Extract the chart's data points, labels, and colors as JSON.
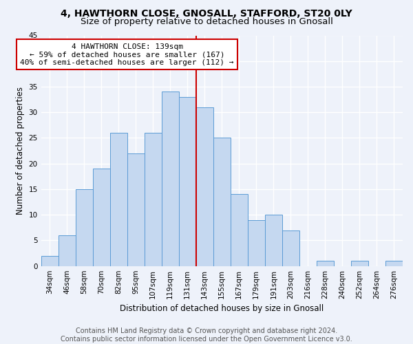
{
  "title_line1": "4, HAWTHORN CLOSE, GNOSALL, STAFFORD, ST20 0LY",
  "title_line2": "Size of property relative to detached houses in Gnosall",
  "xlabel": "Distribution of detached houses by size in Gnosall",
  "ylabel": "Number of detached properties",
  "categories": [
    "34sqm",
    "46sqm",
    "58sqm",
    "70sqm",
    "82sqm",
    "95sqm",
    "107sqm",
    "119sqm",
    "131sqm",
    "143sqm",
    "155sqm",
    "167sqm",
    "179sqm",
    "191sqm",
    "203sqm",
    "216sqm",
    "228sqm",
    "240sqm",
    "252sqm",
    "264sqm",
    "276sqm"
  ],
  "values": [
    2,
    6,
    15,
    19,
    26,
    22,
    26,
    34,
    33,
    31,
    25,
    14,
    9,
    10,
    7,
    0,
    1,
    0,
    1,
    0,
    1
  ],
  "bar_color": "#c5d8f0",
  "bar_edge_color": "#5b9bd5",
  "vline_index": 8.5,
  "vline_color": "#cc0000",
  "annotation_line1": "4 HAWTHORN CLOSE: 139sqm",
  "annotation_line2": "← 59% of detached houses are smaller (167)",
  "annotation_line3": "40% of semi-detached houses are larger (112) →",
  "annotation_box_color": "#cc0000",
  "ylim": [
    0,
    45
  ],
  "yticks": [
    0,
    5,
    10,
    15,
    20,
    25,
    30,
    35,
    40,
    45
  ],
  "footer_line1": "Contains HM Land Registry data © Crown copyright and database right 2024.",
  "footer_line2": "Contains public sector information licensed under the Open Government Licence v3.0.",
  "bg_color": "#eef2fa",
  "grid_color": "#ffffff",
  "title_fontsize": 10,
  "subtitle_fontsize": 9.5,
  "axis_label_fontsize": 8.5,
  "tick_fontsize": 7.5,
  "annotation_fontsize": 8,
  "footer_fontsize": 7
}
